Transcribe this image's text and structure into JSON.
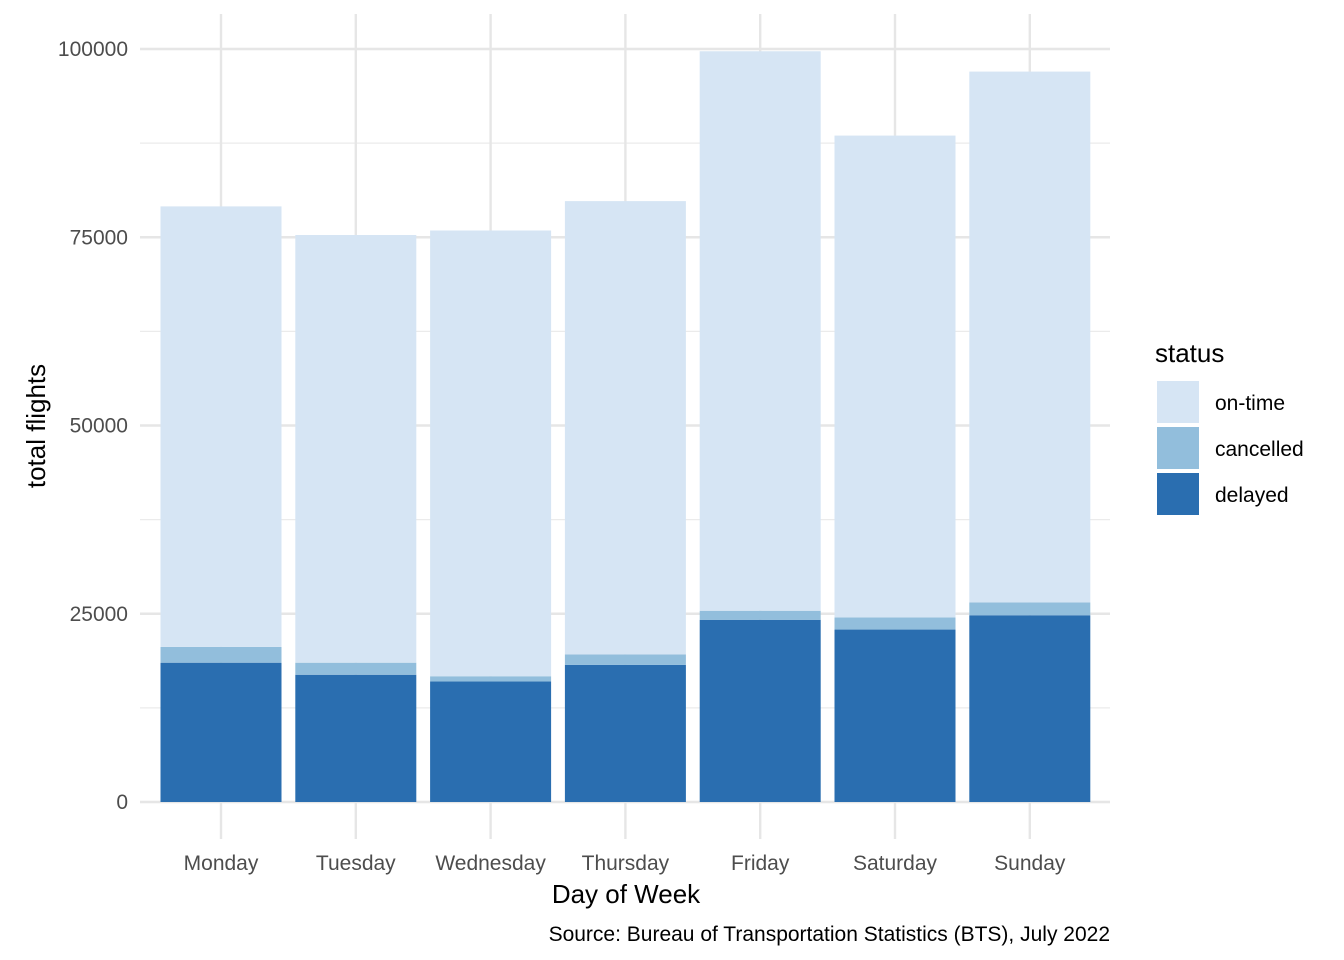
{
  "chart_data": {
    "type": "bar",
    "stacked": true,
    "categories": [
      "Monday",
      "Tuesday",
      "Wednesday",
      "Thursday",
      "Friday",
      "Saturday",
      "Sunday"
    ],
    "series": [
      {
        "name": "delayed",
        "color": "#2a6eb0",
        "values": [
          18500,
          16900,
          16000,
          18200,
          24200,
          22900,
          24800
        ]
      },
      {
        "name": "cancelled",
        "color": "#92bedc",
        "values": [
          2100,
          1600,
          700,
          1400,
          1200,
          1600,
          1700
        ]
      },
      {
        "name": "on-time",
        "color": "#d6e5f4",
        "values": [
          58500,
          56800,
          59200,
          60200,
          74300,
          64000,
          70500
        ]
      }
    ],
    "xlabel": "Day of Week",
    "ylabel": "total flights",
    "ylim": [
      0,
      104000
    ],
    "yticks": [
      0,
      25000,
      50000,
      75000,
      100000
    ],
    "ytick_labels": [
      "0",
      "25000",
      "50000",
      "75000",
      "100000"
    ],
    "legend": {
      "title": "status",
      "position": "right",
      "entries": [
        "on-time",
        "cancelled",
        "delayed"
      ]
    },
    "caption": "Source: Bureau of Transportation Statistics (BTS), July 2022",
    "grid": true
  }
}
